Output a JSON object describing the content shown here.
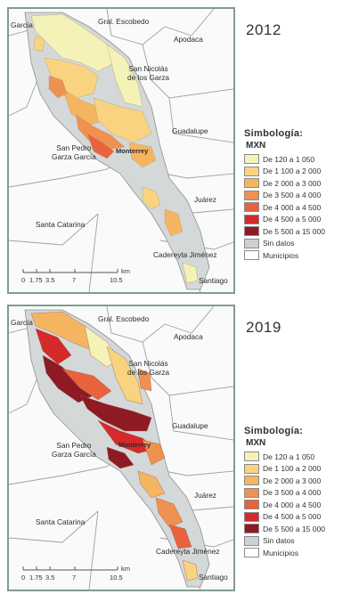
{
  "panels": [
    {
      "year": "2012",
      "municipalities": {
        "garcia": "García",
        "escobedo": "Gral. Escobedo",
        "apodaca": "Apodaca",
        "san_nicolas": "San Nicolás\nde los Garza",
        "guadalupe": "Guadalupe",
        "monterrey": "Monterrey",
        "san_pedro": "San Pedro\nGarza García",
        "juarez": "Juárez",
        "santa_catarina": "Santa Catarina",
        "cadereyta": "Cadereyta Jiménez",
        "santiago": "Santiago"
      },
      "scale": {
        "ticks": [
          "0",
          "1.75",
          "3.5",
          "7",
          "10.5"
        ],
        "unit": "km"
      }
    },
    {
      "year": "2019",
      "municipalities": {
        "garcia": "García",
        "escobedo": "Gral. Escobedo",
        "apodaca": "Apodaca",
        "san_nicolas": "San Nicolás\nde los Garza",
        "guadalupe": "Guadalupe",
        "monterrey": "Monterrey",
        "san_pedro": "San Pedro\nGarza García",
        "juarez": "Juárez",
        "santa_catarina": "Santa Catarina",
        "cadereyta": "Cadereyta Jiménez",
        "santiago": "Santiago"
      },
      "scale": {
        "ticks": [
          "0",
          "1.75",
          "3.5",
          "7",
          "10.5"
        ],
        "unit": "km"
      }
    }
  ],
  "legend": {
    "title": "Simbología:",
    "unit": "MXN",
    "items": [
      {
        "label": "De 120 a 1 050",
        "color": "#f5f2b8"
      },
      {
        "label": "De 1 100 a 2 000",
        "color": "#f9d37f"
      },
      {
        "label": "De 2 000 a 3 000",
        "color": "#f5b560"
      },
      {
        "label": "De 3 500 a 4 000",
        "color": "#ef9150"
      },
      {
        "label": "De 4 000 a 4 500",
        "color": "#e8623d"
      },
      {
        "label": "De 4 500 a 5 000",
        "color": "#d42a2a"
      },
      {
        "label": "De 5 500 a 15 000",
        "color": "#8e1a24"
      },
      {
        "label": "Sin datos",
        "color": "#cdd1d1"
      },
      {
        "label": "Municipios",
        "color": "#ffffff"
      }
    ]
  },
  "colors": {
    "frame": "#7f9c8f",
    "boundary": "#9a9a9a",
    "metro_area": "#d4d8d8"
  }
}
